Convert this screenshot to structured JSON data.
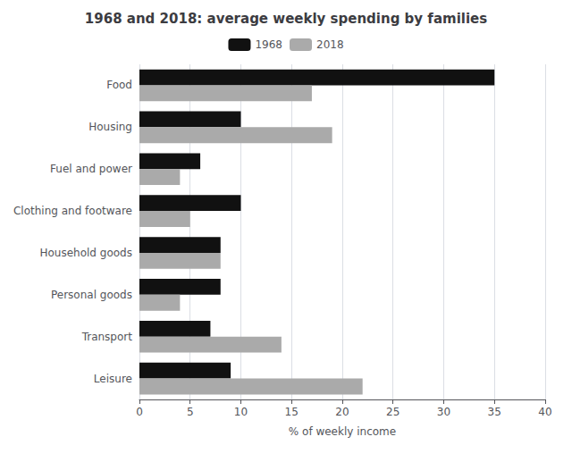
{
  "chart_data": {
    "type": "bar",
    "orientation": "horizontal",
    "title": "1968 and 2018: average weekly spending by families",
    "categories": [
      "Food",
      "Housing",
      "Fuel and power",
      "Clothing and footware",
      "Household goods",
      "Personal goods",
      "Transport",
      "Leisure"
    ],
    "series": [
      {
        "name": "1968",
        "color": "#111111",
        "values": [
          35,
          10,
          6,
          10,
          8,
          8,
          7,
          9
        ]
      },
      {
        "name": "2018",
        "color": "#aaaaaa",
        "values": [
          17,
          19,
          4,
          5,
          8,
          4,
          14,
          22
        ]
      }
    ],
    "xlabel": "% of weekly income",
    "xlim": [
      0,
      40
    ],
    "xticks": [
      0,
      5,
      10,
      15,
      20,
      25,
      30,
      35,
      40
    ],
    "grid": true,
    "legend": "top"
  }
}
